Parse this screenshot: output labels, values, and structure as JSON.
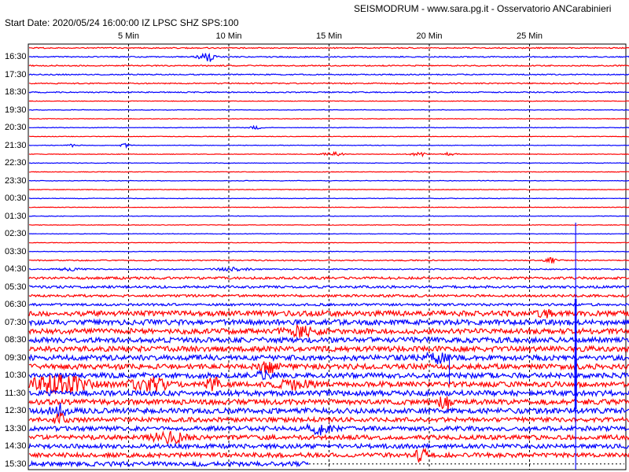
{
  "header": {
    "title": "SEISMODRUM - www.sara.pg.it - Osservatorio ANCarabinieri",
    "start_info": "Start Date: 2020/05/24 16:00:00 IZ LPSC    SHZ  SPS:100"
  },
  "chart_data": {
    "type": "line",
    "title": "SEISMODRUM - www.sara.pg.it - Osservatorio ANCarabinieri",
    "start_date": "2020/05/24 16:00:00",
    "station": "IZ LPSC",
    "channel": "SHZ",
    "sps": 100,
    "minutes_per_line": 30,
    "minute_ticks": [
      5,
      10,
      15,
      20,
      25
    ],
    "minute_labels": [
      "5 Min",
      "10 Min",
      "15 Min",
      "20 Min",
      "25 Min"
    ],
    "time_labels": [
      "16:30",
      "17:30",
      "18:30",
      "19:30",
      "20:30",
      "21:30",
      "22:30",
      "23:30",
      "00:30",
      "01:30",
      "02:30",
      "03:30",
      "04:30",
      "05:30",
      "06:30",
      "07:30",
      "08:30",
      "09:30",
      "10:30",
      "11:30",
      "12:30",
      "13:30",
      "14:30",
      "15:30"
    ],
    "line_colors": [
      "#ff0000",
      "#0000ff"
    ],
    "trace_count": 48,
    "grid": true
  }
}
